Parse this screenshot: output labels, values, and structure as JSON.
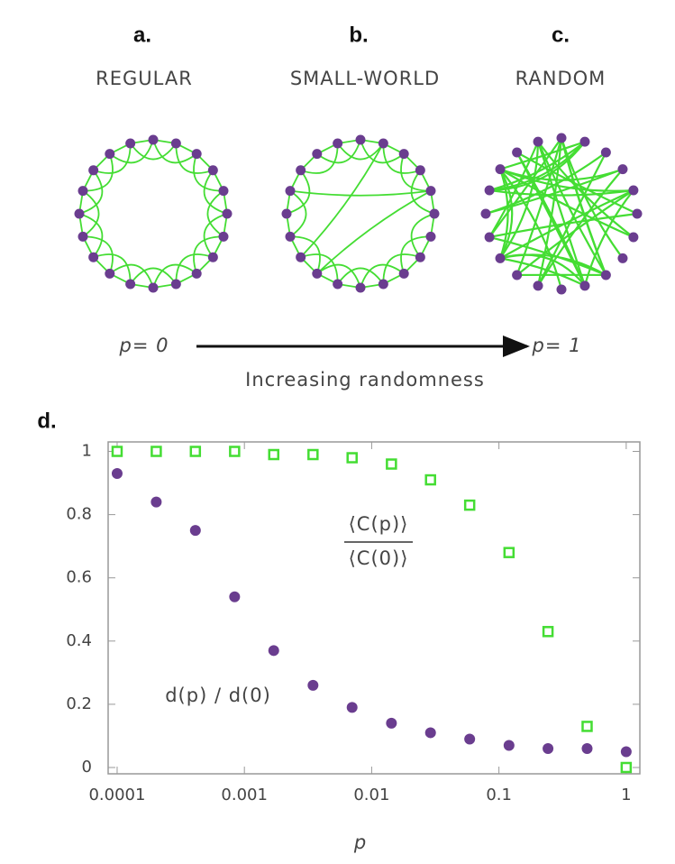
{
  "panels": [
    {
      "letter": "a.",
      "label": "REGULAR"
    },
    {
      "letter": "b.",
      "label": "SMALL-WORLD"
    },
    {
      "letter": "c.",
      "label": "RANDOM"
    }
  ],
  "arrow": {
    "left": "p= 0",
    "right": "p= 1",
    "caption": "Increasing randomness"
  },
  "chart_data": {
    "type": "scatter",
    "panel_letter": "d.",
    "xlabel": "p",
    "xscale": "log",
    "xlim": [
      8.5e-05,
      1.28
    ],
    "ylim": [
      -0.02,
      1.03
    ],
    "xticks": [
      0.0001,
      0.001,
      0.01,
      0.1,
      1
    ],
    "yticks": [
      0,
      0.2,
      0.4,
      0.6,
      0.8,
      1
    ],
    "x": [
      0.0001,
      0.000203,
      0.000412,
      0.000838,
      0.0017,
      0.00346,
      0.00702,
      0.0143,
      0.029,
      0.0589,
      0.12,
      0.243,
      0.493,
      1
    ],
    "series": [
      {
        "label": {
          "numerator": "⟨C(p)⟩",
          "denominator": "⟨C(0)⟩"
        },
        "marker": "square",
        "color": "#44dd33",
        "values": [
          1,
          1,
          1,
          1,
          0.99,
          0.99,
          0.98,
          0.96,
          0.91,
          0.83,
          0.68,
          0.43,
          0.13,
          0
        ]
      },
      {
        "name": "d(p) / d(0)",
        "marker": "circle",
        "color": "#6a3d8f",
        "values": [
          0.93,
          0.84,
          0.75,
          0.54,
          0.37,
          0.26,
          0.19,
          0.14,
          0.11,
          0.09,
          0.07,
          0.06,
          0.06,
          0.05
        ]
      }
    ]
  }
}
